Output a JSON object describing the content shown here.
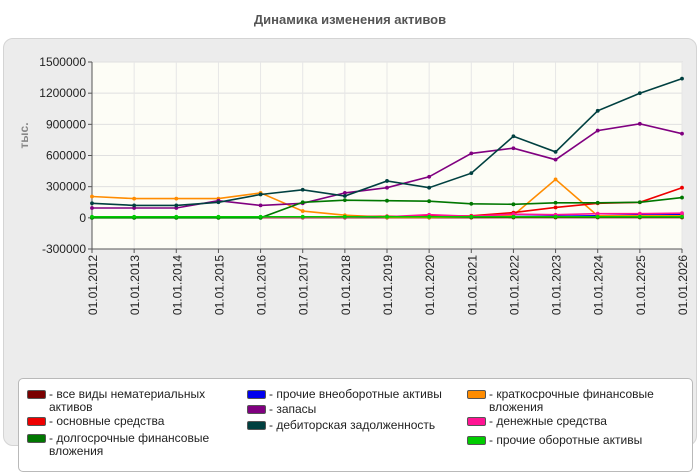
{
  "chart_data": {
    "type": "line",
    "title": "Динамика изменения активов",
    "ylabel": "тыс.",
    "ylim": [
      -300000,
      1500000
    ],
    "yticks": [
      "1500000",
      "1200000",
      "900000",
      "600000",
      "300000",
      "0",
      "-300000"
    ],
    "categories": [
      "01.01.2012",
      "01.01.2013",
      "01.01.2014",
      "01.01.2015",
      "01.01.2016",
      "01.01.2017",
      "01.01.2018",
      "01.01.2019",
      "01.01.2020",
      "01.01.2021",
      "01.01.2022",
      "01.01.2023",
      "01.01.2024",
      "01.01.2025",
      "01.01.2026"
    ],
    "grid": true,
    "legend_position": "bottom",
    "series": [
      {
        "name": "- все виды нематериальных активов",
        "color": "#7a0000",
        "values": [
          2000,
          2000,
          2000,
          2000,
          2000,
          2000,
          2000,
          2000,
          2000,
          2000,
          3000,
          3000,
          3000,
          3000,
          3000
        ]
      },
      {
        "name": "- прочие внеоборотные активы",
        "color": "#0000ee",
        "values": [
          8000,
          8000,
          8000,
          8000,
          8000,
          8000,
          8000,
          10000,
          10000,
          10000,
          12000,
          15000,
          20000,
          25000,
          30000
        ]
      },
      {
        "name": "- краткосрочные финансовые вложения",
        "color": "#ff8c00",
        "values": [
          205000,
          185000,
          185000,
          185000,
          240000,
          65000,
          25000,
          5000,
          5000,
          10000,
          25000,
          370000,
          20000,
          20000,
          20000
        ]
      },
      {
        "name": "- основные средства",
        "color": "#ee0000",
        "values": [
          5000,
          5000,
          5000,
          5000,
          5000,
          8000,
          10000,
          15000,
          15000,
          20000,
          50000,
          100000,
          140000,
          150000,
          290000
        ]
      },
      {
        "name": "- запасы",
        "color": "#800080",
        "values": [
          95000,
          95000,
          95000,
          165000,
          120000,
          140000,
          240000,
          290000,
          395000,
          620000,
          670000,
          560000,
          840000,
          905000,
          810000
        ]
      },
      {
        "name": "- денежные средства",
        "color": "#ff1493",
        "values": [
          5000,
          5000,
          5000,
          5000,
          5000,
          5000,
          5000,
          10000,
          30000,
          15000,
          35000,
          30000,
          40000,
          40000,
          45000
        ]
      },
      {
        "name": "- долгосрочные финансовые вложения",
        "color": "#007700",
        "values": [
          0,
          0,
          0,
          0,
          0,
          150000,
          170000,
          165000,
          160000,
          135000,
          130000,
          145000,
          145000,
          150000,
          195000
        ]
      },
      {
        "name": "- дебиторская задолженность",
        "color": "#004040",
        "values": [
          140000,
          120000,
          120000,
          150000,
          225000,
          270000,
          210000,
          355000,
          290000,
          430000,
          785000,
          635000,
          1030000,
          1200000,
          1340000
        ]
      },
      {
        "name": "- прочие оборотные активы",
        "color": "#00cc00",
        "values": [
          10000,
          10000,
          10000,
          10000,
          10000,
          10000,
          10000,
          10000,
          10000,
          10000,
          10000,
          10000,
          10000,
          10000,
          10000
        ]
      }
    ]
  }
}
